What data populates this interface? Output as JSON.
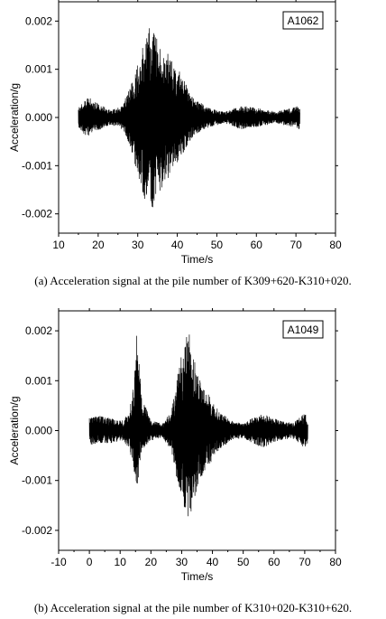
{
  "charts": [
    {
      "tag": "A1062",
      "caption": "(a) Acceleration signal at the pile number of K309+620-K310+020.",
      "chart_data": {
        "type": "line",
        "xlabel": "Time/s",
        "ylabel": "Acceleration/g",
        "xlim": [
          10,
          80
        ],
        "ylim": [
          -0.0024,
          0.0024
        ],
        "xticks": [
          10,
          20,
          30,
          40,
          50,
          60,
          70,
          80
        ],
        "yticks": [
          -0.002,
          -0.001,
          0.0,
          0.001,
          0.002
        ],
        "ytick_labels": [
          "-0.002",
          "-0.001",
          "0.000",
          "0.001",
          "0.002"
        ],
        "grid": false,
        "legend": "none",
        "signal_start": 15,
        "signal_end": 71,
        "envelope": [
          {
            "t": 15,
            "upper": 0.0002,
            "lower": -0.0002
          },
          {
            "t": 17,
            "upper": 0.00045,
            "lower": -0.0004
          },
          {
            "t": 20,
            "upper": 0.0003,
            "lower": -0.00028
          },
          {
            "t": 23,
            "upper": 0.00015,
            "lower": -0.00015
          },
          {
            "t": 26,
            "upper": 0.00025,
            "lower": -0.00025
          },
          {
            "t": 28,
            "upper": 0.0006,
            "lower": -0.0006
          },
          {
            "t": 30,
            "upper": 0.0012,
            "lower": -0.0012
          },
          {
            "t": 32,
            "upper": 0.0016,
            "lower": -0.0018
          },
          {
            "t": 33,
            "upper": 0.002,
            "lower": -0.002
          },
          {
            "t": 35,
            "upper": 0.0016,
            "lower": -0.0018
          },
          {
            "t": 38,
            "upper": 0.0013,
            "lower": -0.0012
          },
          {
            "t": 41,
            "upper": 0.0009,
            "lower": -0.0008
          },
          {
            "t": 44,
            "upper": 0.0004,
            "lower": -0.0004
          },
          {
            "t": 48,
            "upper": 0.0002,
            "lower": -0.0002
          },
          {
            "t": 52,
            "upper": 0.00012,
            "lower": -0.00012
          },
          {
            "t": 56,
            "upper": 0.00025,
            "lower": -0.00025
          },
          {
            "t": 60,
            "upper": 0.0002,
            "lower": -0.0002
          },
          {
            "t": 65,
            "upper": 0.00012,
            "lower": -0.00012
          },
          {
            "t": 69,
            "upper": 0.0002,
            "lower": -0.0002
          },
          {
            "t": 71,
            "upper": 0.00025,
            "lower": -0.00025
          }
        ]
      }
    },
    {
      "tag": "A1049",
      "caption": "(b) Acceleration signal at the pile number of K310+020-K310+620.",
      "chart_data": {
        "type": "line",
        "xlabel": "Time/s",
        "ylabel": "Acceleration/g",
        "xlim": [
          -10,
          80
        ],
        "ylim": [
          -0.0024,
          0.0024
        ],
        "xticks": [
          -10,
          0,
          10,
          20,
          30,
          40,
          50,
          60,
          70,
          80
        ],
        "yticks": [
          -0.002,
          -0.001,
          0.0,
          0.001,
          0.002
        ],
        "ytick_labels": [
          "-0.002",
          "-0.001",
          "0.000",
          "0.001",
          "0.002"
        ],
        "grid": false,
        "legend": "none",
        "signal_start": 0,
        "signal_end": 71,
        "envelope": [
          {
            "t": 0,
            "upper": 0.0003,
            "lower": -0.0003
          },
          {
            "t": 3,
            "upper": 0.0003,
            "lower": -0.00025
          },
          {
            "t": 7,
            "upper": 0.00025,
            "lower": -0.00025
          },
          {
            "t": 11,
            "upper": 0.0002,
            "lower": -0.0002
          },
          {
            "t": 13,
            "upper": 0.0004,
            "lower": -0.0004
          },
          {
            "t": 14.5,
            "upper": 0.001,
            "lower": -0.0008
          },
          {
            "t": 15.5,
            "upper": 0.0021,
            "lower": -0.0012
          },
          {
            "t": 17,
            "upper": 0.0007,
            "lower": -0.0004
          },
          {
            "t": 20,
            "upper": 0.0002,
            "lower": -0.0002
          },
          {
            "t": 24,
            "upper": 0.00015,
            "lower": -0.00015
          },
          {
            "t": 27,
            "upper": 0.0005,
            "lower": -0.0005
          },
          {
            "t": 29,
            "upper": 0.0013,
            "lower": -0.0012
          },
          {
            "t": 31,
            "upper": 0.0018,
            "lower": -0.0016
          },
          {
            "t": 32.5,
            "upper": 0.002,
            "lower": -0.0018
          },
          {
            "t": 35,
            "upper": 0.0012,
            "lower": -0.0012
          },
          {
            "t": 38,
            "upper": 0.0008,
            "lower": -0.0008
          },
          {
            "t": 42,
            "upper": 0.0004,
            "lower": -0.0004
          },
          {
            "t": 46,
            "upper": 0.0002,
            "lower": -0.0002
          },
          {
            "t": 50,
            "upper": 0.00015,
            "lower": -0.00015
          },
          {
            "t": 56,
            "upper": 0.00035,
            "lower": -0.00035
          },
          {
            "t": 62,
            "upper": 0.0002,
            "lower": -0.0002
          },
          {
            "t": 66,
            "upper": 0.00015,
            "lower": -0.00015
          },
          {
            "t": 70,
            "upper": 0.00035,
            "lower": -0.00035
          },
          {
            "t": 71,
            "upper": 0.00025,
            "lower": -0.00025
          }
        ]
      }
    }
  ]
}
